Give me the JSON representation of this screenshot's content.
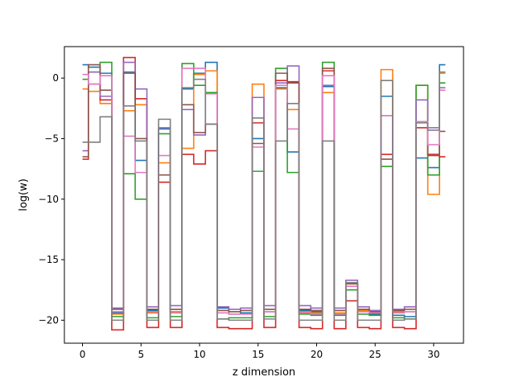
{
  "chart_data": {
    "type": "line",
    "drawstyle": "steps-mid",
    "title": "",
    "xlabel": "z dimension",
    "ylabel": "log(w)",
    "xlim": [
      -1.55,
      32.55
    ],
    "ylim": [
      -21.9,
      2.6
    ],
    "xticks": [
      0,
      5,
      10,
      15,
      20,
      25,
      30
    ],
    "yticks": [
      0,
      -5,
      -10,
      -15,
      -20
    ],
    "grid": false,
    "legend": "none",
    "x": [
      0,
      1,
      2,
      3,
      4,
      5,
      6,
      7,
      8,
      9,
      10,
      11,
      12,
      13,
      14,
      15,
      16,
      17,
      18,
      19,
      20,
      21,
      22,
      23,
      24,
      25,
      26,
      27,
      28,
      29,
      30,
      31
    ],
    "series": [
      {
        "color": "#1f77b4",
        "values": [
          1.1,
          0.9,
          0.4,
          -19.4,
          0.5,
          -6.8,
          -19.2,
          -4.2,
          -19.1,
          -0.9,
          0.4,
          1.3,
          -19.0,
          -19.5,
          -19.4,
          -5.0,
          -19.3,
          -0.8,
          -6.1,
          -19.2,
          -19.3,
          -0.7,
          -19.2,
          -17.0,
          -19.3,
          -19.5,
          -1.5,
          -19.6,
          -19.7,
          -6.6,
          -7.4,
          1.1
        ]
      },
      {
        "color": "#ff7f0e",
        "values": [
          -0.9,
          -1.1,
          -2.1,
          -19.5,
          -2.7,
          -2.2,
          -19.4,
          -7.0,
          -19.3,
          -5.8,
          0.3,
          0.6,
          -19.2,
          -19.3,
          -19.2,
          -0.5,
          -19.1,
          -0.9,
          -2.6,
          -19.3,
          -19.4,
          -1.2,
          -19.4,
          -17.2,
          -19.2,
          -19.2,
          0.7,
          -19.3,
          -19.3,
          -0.6,
          -9.6,
          0.4
        ]
      },
      {
        "color": "#2ca02c",
        "values": [
          -0.1,
          0.5,
          1.3,
          -19.7,
          -7.9,
          -10.0,
          -19.8,
          -4.6,
          -19.7,
          1.2,
          -0.6,
          -1.2,
          -19.9,
          -19.8,
          -19.8,
          -7.7,
          -19.7,
          0.8,
          -7.8,
          -19.5,
          -19.6,
          1.3,
          -19.6,
          -17.5,
          -19.5,
          -19.6,
          -7.3,
          -19.8,
          -19.9,
          -0.6,
          -8.0,
          -0.4
        ]
      },
      {
        "color": "#d62728",
        "values": [
          -6.7,
          -0.5,
          -1.8,
          -20.8,
          1.7,
          -1.7,
          -20.6,
          -8.6,
          -20.6,
          -6.3,
          -7.1,
          -6.0,
          -20.6,
          -20.7,
          -20.7,
          -3.7,
          -20.6,
          -0.2,
          -0.3,
          -20.6,
          -20.7,
          0.6,
          -20.7,
          -18.4,
          -20.6,
          -20.7,
          -6.3,
          -20.6,
          -20.7,
          -4.1,
          -6.3,
          -6.5
        ]
      },
      {
        "color": "#9467bd",
        "values": [
          -6.0,
          0.5,
          -1.5,
          -19.0,
          1.3,
          -0.9,
          -18.9,
          -4.1,
          -18.8,
          -2.6,
          -4.7,
          -1.3,
          -18.9,
          -19.1,
          -19.0,
          -1.6,
          -18.8,
          -0.4,
          1.0,
          -18.8,
          -19.0,
          -0.6,
          -19.0,
          -16.7,
          -18.9,
          -19.2,
          -3.1,
          -19.1,
          -18.9,
          -1.8,
          -4.1,
          -0.8
        ]
      },
      {
        "color": "#8c564b",
        "values": [
          -6.5,
          1.1,
          -1.0,
          -19.1,
          0.4,
          -5.0,
          -19.1,
          -8.0,
          -19.1,
          -2.2,
          -4.5,
          -3.8,
          -19.2,
          -19.3,
          -19.2,
          -5.4,
          -19.1,
          0.4,
          -0.4,
          -19.1,
          -19.2,
          0.8,
          -19.2,
          -17.0,
          -19.1,
          -19.3,
          -6.7,
          -19.2,
          -19.1,
          -3.6,
          -6.4,
          -4.4
        ]
      },
      {
        "color": "#e377c2",
        "values": [
          0.3,
          -0.5,
          0.2,
          -19.3,
          -4.8,
          -7.8,
          -19.3,
          -6.4,
          -19.4,
          0.8,
          0.8,
          -1.3,
          -19.4,
          -19.5,
          -19.5,
          -5.7,
          -19.3,
          -0.6,
          -4.2,
          -19.4,
          -19.5,
          0.2,
          -19.5,
          -17.2,
          -19.3,
          -19.4,
          -3.1,
          -19.4,
          -19.3,
          -3.6,
          -5.5,
          -1.0
        ]
      },
      {
        "color": "#7f7f7f",
        "values": [
          -5.3,
          -5.3,
          -3.2,
          -20.0,
          -2.3,
          -5.2,
          -20.0,
          -3.4,
          -20.0,
          -0.8,
          -0.1,
          -3.8,
          -19.9,
          -20.0,
          -20.0,
          -3.3,
          -19.9,
          -5.2,
          -2.1,
          -20.0,
          -20.0,
          -5.2,
          -20.0,
          -16.9,
          -20.0,
          -20.0,
          -0.2,
          -20.0,
          -19.9,
          -3.7,
          -4.3,
          0.5
        ]
      }
    ]
  }
}
